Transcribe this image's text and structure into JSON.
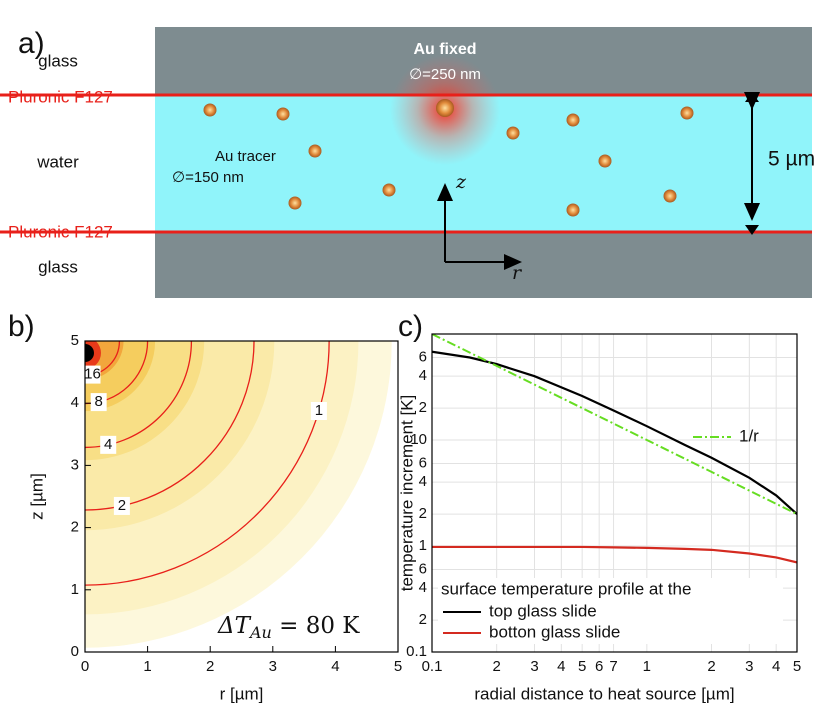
{
  "diagram": {
    "label": "a)",
    "layers": [
      "glass",
      "Pluronic F127",
      "water",
      "Pluronic F127",
      "glass"
    ],
    "fixed": {
      "title": "Au fixed",
      "size": "∅=250 nm"
    },
    "tracer": {
      "title": "Au tracer",
      "size": "∅=150 nm"
    },
    "axes": {
      "z": "z",
      "r": "r"
    },
    "thickness": "5 µm"
  },
  "chart_data": [
    {
      "panel": "b)",
      "type": "contour",
      "xlabel": "r [µm]",
      "ylabel": "z [µm]",
      "xlim": [
        0,
        5
      ],
      "ylim": [
        0,
        5
      ],
      "xticks": [
        0,
        1,
        2,
        3,
        4,
        5
      ],
      "yticks": [
        0,
        1,
        2,
        3,
        4,
        5
      ],
      "levels": [
        1,
        2,
        4,
        8,
        16
      ],
      "radii": [
        3.9,
        2.7,
        1.7,
        1.0,
        0.55
      ],
      "line_color": "#e8201a",
      "annotation": [
        "ΔT",
        "Au",
        " = 80 K"
      ]
    },
    {
      "panel": "c)",
      "type": "line",
      "log_x": true,
      "log_y": true,
      "grid": true,
      "xlabel": "radial distance to heat source [µm]",
      "ylabel": "temperature increment [K]",
      "xlim": [
        0.1,
        5
      ],
      "ylim": [
        0.1,
        100
      ],
      "xticks": [
        0.1,
        {
          "value": 0.2,
          "label": "2"
        },
        {
          "value": 0.3,
          "label": "3"
        },
        {
          "value": 0.4,
          "label": "4"
        },
        {
          "value": 0.5,
          "label": "5"
        },
        {
          "value": 0.6,
          "label": "6"
        },
        {
          "value": 0.7,
          "label": "7"
        },
        1,
        2,
        3,
        4,
        5
      ],
      "yticks": [
        0.1,
        {
          "value": 0.2,
          "label": "2"
        },
        {
          "value": 0.4,
          "label": "4"
        },
        {
          "value": 0.6,
          "label": "6"
        },
        1,
        2,
        4,
        6,
        10,
        {
          "value": 20,
          "label": "2"
        },
        {
          "value": 40,
          "label": "4"
        },
        {
          "value": 60,
          "label": "6"
        }
      ],
      "x": [
        0.1,
        0.15,
        0.2,
        0.3,
        0.5,
        0.7,
        1,
        1.5,
        2,
        3,
        4,
        5
      ],
      "legend_title": "surface temperature profile at the",
      "series": [
        {
          "name": "top glass slide",
          "color": "#000000",
          "values": [
            68,
            60,
            52,
            40,
            26,
            19,
            13.5,
            9,
            6.8,
            4.4,
            3,
            2.0
          ]
        },
        {
          "name": "botton glass slide",
          "color": "#d42a20",
          "values": [
            0.98,
            0.98,
            0.98,
            0.98,
            0.98,
            0.97,
            0.96,
            0.94,
            0.92,
            0.85,
            0.78,
            0.7
          ]
        },
        {
          "name": "1/r",
          "color": "#66dd22",
          "dashed": true,
          "values": [
            100,
            66.7,
            50,
            33.3,
            20,
            14.3,
            10,
            6.67,
            5,
            3.33,
            2.5,
            2
          ]
        }
      ]
    }
  ]
}
